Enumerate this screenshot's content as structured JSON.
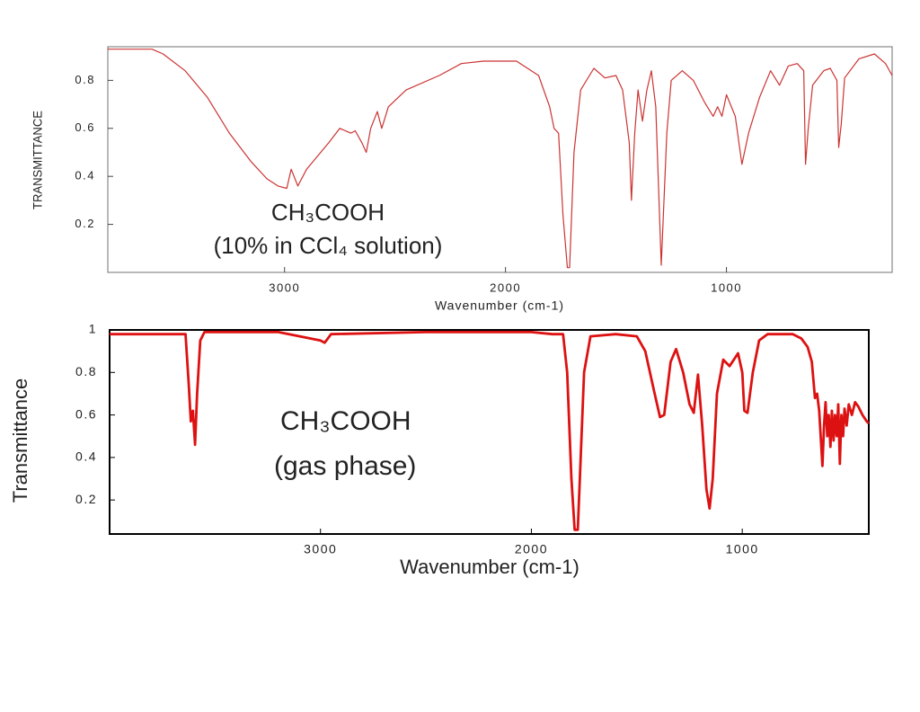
{
  "chart_data": [
    {
      "type": "line",
      "annotation": [
        "CH₃COOH",
        "(10% in CCl₄ solution)"
      ],
      "x_label": "Wavenumber (cm-1)",
      "y_label": "TRANSMITTANCE",
      "xlim": [
        3800,
        250
      ],
      "ylim": [
        0,
        0.94
      ],
      "xticks": [
        3000,
        2000,
        1000
      ],
      "yticks": [
        0.2,
        0.4,
        0.6,
        0.8
      ],
      "color": "#cc3333",
      "x": [
        3800,
        3600,
        3550,
        3450,
        3350,
        3250,
        3150,
        3080,
        3030,
        2990,
        2970,
        2940,
        2900,
        2800,
        2750,
        2700,
        2680,
        2650,
        2630,
        2610,
        2580,
        2560,
        2530,
        2450,
        2300,
        2200,
        2100,
        1950,
        1850,
        1800,
        1780,
        1760,
        1740,
        1720,
        1710,
        1690,
        1660,
        1600,
        1550,
        1500,
        1470,
        1440,
        1430,
        1415,
        1400,
        1380,
        1360,
        1340,
        1320,
        1295,
        1270,
        1250,
        1200,
        1150,
        1100,
        1060,
        1040,
        1020,
        1000,
        960,
        930,
        900,
        850,
        800,
        760,
        720,
        680,
        650,
        642,
        630,
        610,
        560,
        530,
        500,
        492,
        480,
        465,
        400,
        330,
        280,
        250
      ],
      "values": [
        0.93,
        0.93,
        0.91,
        0.84,
        0.73,
        0.58,
        0.46,
        0.39,
        0.36,
        0.35,
        0.43,
        0.36,
        0.43,
        0.54,
        0.6,
        0.58,
        0.59,
        0.54,
        0.5,
        0.6,
        0.67,
        0.6,
        0.69,
        0.76,
        0.82,
        0.87,
        0.88,
        0.88,
        0.82,
        0.69,
        0.6,
        0.58,
        0.24,
        0.02,
        0.02,
        0.5,
        0.76,
        0.85,
        0.81,
        0.82,
        0.76,
        0.54,
        0.3,
        0.58,
        0.76,
        0.63,
        0.76,
        0.84,
        0.69,
        0.03,
        0.58,
        0.8,
        0.84,
        0.8,
        0.71,
        0.65,
        0.69,
        0.65,
        0.74,
        0.65,
        0.45,
        0.58,
        0.73,
        0.84,
        0.78,
        0.86,
        0.87,
        0.84,
        0.45,
        0.6,
        0.78,
        0.84,
        0.85,
        0.8,
        0.52,
        0.62,
        0.81,
        0.89,
        0.91,
        0.87,
        0.82
      ]
    },
    {
      "type": "line",
      "annotation": [
        "CH₃COOH",
        "(gas phase)"
      ],
      "x_label": "Wavenumber (cm-1)",
      "y_label": "Transmittance",
      "xlim": [
        4000,
        400
      ],
      "ylim": [
        0.04,
        1
      ],
      "xticks": [
        3000,
        2000,
        1000
      ],
      "yticks": [
        0.2,
        0.4,
        0.6,
        0.8,
        1
      ],
      "color": "#dd1111",
      "x": [
        4000,
        3700,
        3640,
        3625,
        3615,
        3605,
        3595,
        3585,
        3570,
        3550,
        3200,
        3000,
        2980,
        2950,
        2500,
        2000,
        1900,
        1850,
        1830,
        1810,
        1795,
        1780,
        1770,
        1750,
        1720,
        1600,
        1500,
        1460,
        1420,
        1390,
        1370,
        1340,
        1314,
        1280,
        1250,
        1230,
        1210,
        1190,
        1170,
        1155,
        1140,
        1120,
        1090,
        1060,
        1020,
        1000,
        990,
        975,
        950,
        920,
        880,
        800,
        760,
        720,
        690,
        670,
        655,
        645,
        635,
        620,
        612,
        605,
        597,
        590,
        582,
        575,
        567,
        560,
        552,
        545,
        537,
        530,
        522,
        515,
        505,
        495,
        480,
        465,
        450,
        430,
        410,
        400
      ],
      "values": [
        0.98,
        0.98,
        0.98,
        0.75,
        0.57,
        0.62,
        0.46,
        0.7,
        0.95,
        0.99,
        0.99,
        0.95,
        0.94,
        0.98,
        0.99,
        0.99,
        0.98,
        0.98,
        0.8,
        0.3,
        0.06,
        0.06,
        0.3,
        0.8,
        0.97,
        0.98,
        0.97,
        0.9,
        0.72,
        0.59,
        0.6,
        0.85,
        0.91,
        0.8,
        0.65,
        0.61,
        0.79,
        0.55,
        0.25,
        0.16,
        0.3,
        0.7,
        0.86,
        0.83,
        0.89,
        0.8,
        0.62,
        0.61,
        0.8,
        0.95,
        0.98,
        0.98,
        0.98,
        0.96,
        0.92,
        0.85,
        0.68,
        0.7,
        0.62,
        0.36,
        0.55,
        0.66,
        0.5,
        0.6,
        0.45,
        0.62,
        0.48,
        0.6,
        0.5,
        0.65,
        0.37,
        0.6,
        0.5,
        0.63,
        0.55,
        0.65,
        0.6,
        0.66,
        0.64,
        0.6,
        0.57,
        0.56
      ]
    }
  ]
}
